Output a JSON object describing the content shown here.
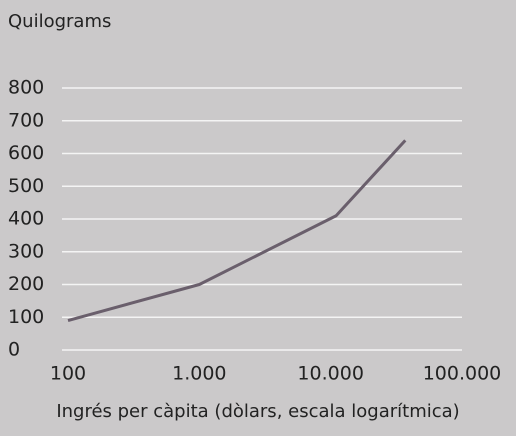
{
  "chart_data": {
    "type": "line",
    "y_label": "Quilograms",
    "x_label": "Ingrés per càpita (dòlars, escala logarítmica)",
    "x": [
      100,
      1000,
      11000,
      37000
    ],
    "values": [
      90,
      200,
      410,
      640
    ],
    "color": "#6a5f6c",
    "background": "#cbc9ca",
    "grid_color": "#f4f4f4",
    "xscale": "log",
    "xlim": [
      100,
      100000
    ],
    "xticks": [
      100,
      {
        "value": 1000,
        "label": "1.000"
      },
      {
        "value": 10000,
        "label": "10.000"
      },
      {
        "value": 100000,
        "label": "100.000"
      }
    ],
    "ylim": [
      0,
      800
    ],
    "yticks": [
      0,
      100,
      200,
      300,
      400,
      500,
      600,
      700,
      800
    ],
    "grid": true
  }
}
